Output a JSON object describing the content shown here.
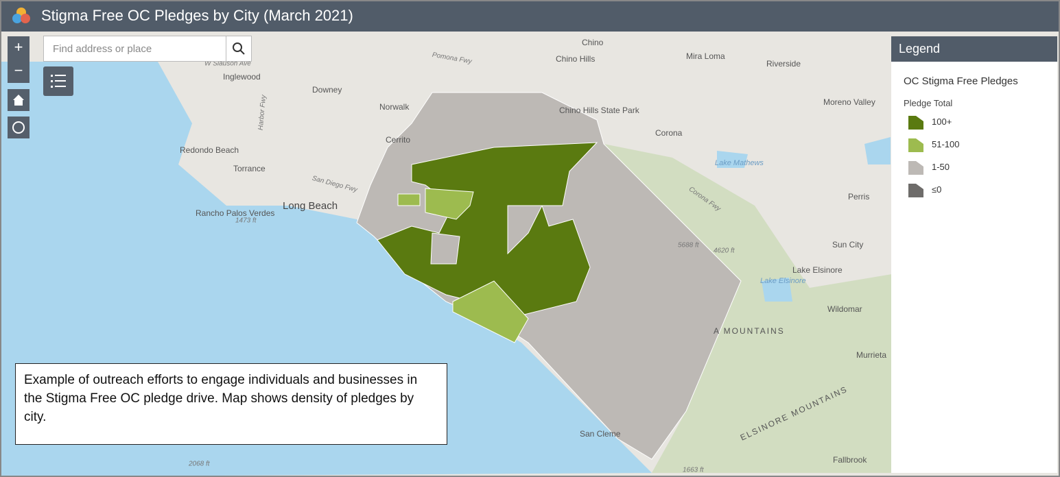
{
  "header": {
    "title": "Stigma Free OC Pledges by City (March 2021)"
  },
  "search": {
    "placeholder": "Find address or place"
  },
  "legend": {
    "title": "Legend",
    "layer": "OC Stigma Free Pledges",
    "field": "Pledge Total",
    "items": [
      {
        "label": "100+",
        "color": "#5a7a10"
      },
      {
        "label": "51-100",
        "color": "#9dbb4f"
      },
      {
        "label": "1-50",
        "color": "#bdb9b5"
      },
      {
        "label": "≤0",
        "color": "#6e6c6a"
      }
    ]
  },
  "caption": "Example of outreach efforts to engage individuals and businesses in the Stigma Free OC pledge drive. Map shows density of pledges by city.",
  "map_labels": [
    "Chino",
    "Chino Hills",
    "Mira Loma",
    "Riverside",
    "Inglewood",
    "Downey",
    "Norwalk",
    "Moreno Valley",
    "Chino Hills State Park",
    "Corona",
    "Redondo Beach",
    "Torrance",
    "Lake Mathews",
    "Long Beach",
    "Perris",
    "Rancho Palos Verdes",
    "1473 ft",
    "Sun City",
    "Lake Elsinore",
    "Lake Elsinore",
    "Wildomar",
    "Murrieta",
    "San Cleme",
    "Fallbrook",
    "5688 ft",
    "4620 ft",
    "2068 ft",
    "1663 ft",
    "Cerrito",
    "A MOUNTAINS",
    "ELSINORE MOUNTAINS",
    "San Diego Fwy",
    "Pomona Fwy",
    "Corona Fwy",
    "W Slauson Ave",
    "Harbor Fwy"
  ]
}
